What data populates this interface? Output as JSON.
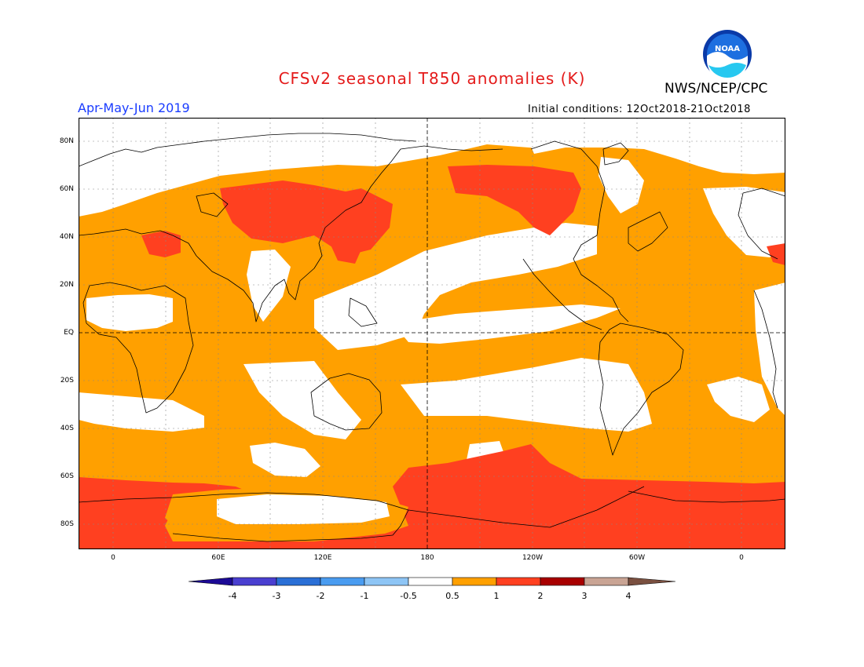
{
  "header": {
    "title": "CFSv2 seasonal T850 anomalies (K)",
    "organization": "NWS/NCEP/CPC",
    "period": "Apr-May-Jun 2019",
    "initial_conditions": "Initial conditions: 12Oct2018-21Oct2018",
    "logo_text": "NOAA"
  },
  "map": {
    "lat_labels": [
      "80N",
      "60N",
      "40N",
      "20N",
      "EQ",
      "20S",
      "40S",
      "60S",
      "80S"
    ],
    "lon_labels": [
      "0",
      "60E",
      "120E",
      "180",
      "120W",
      "60W",
      "0"
    ]
  },
  "colorbar": {
    "levels": [
      "-4",
      "-3",
      "-2",
      "-1",
      "-0.5",
      "0.5",
      "1",
      "2",
      "3",
      "4"
    ],
    "colors": [
      "#1c0a96",
      "#4a3fd0",
      "#2a6fd6",
      "#4a9cf0",
      "#8ec5f5",
      "#ffffff",
      "#ffa000",
      "#ff4020",
      "#a80000",
      "#c9a494",
      "#7a5040"
    ]
  }
}
